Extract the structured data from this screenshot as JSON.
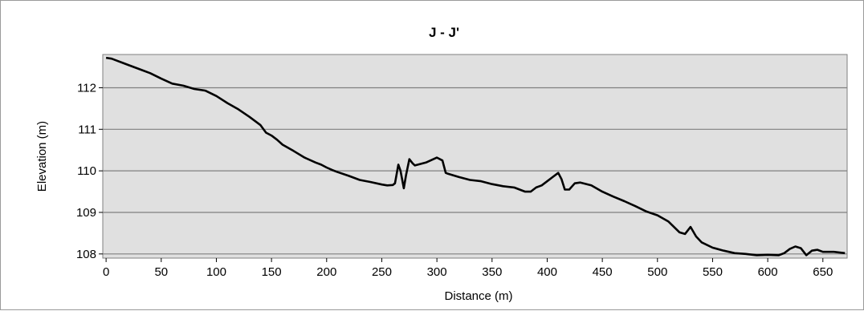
{
  "chart_data": {
    "type": "line",
    "title": "J - J'",
    "xlabel": "Distance (m)",
    "ylabel": "Elevation (m)",
    "xlim": [
      -3,
      672
    ],
    "ylim": [
      107.9,
      112.8
    ],
    "xticks": [
      0,
      50,
      100,
      150,
      200,
      250,
      300,
      350,
      400,
      450,
      500,
      550,
      600,
      650
    ],
    "yticks": [
      108,
      109,
      110,
      111,
      112
    ],
    "grid": "horizontal",
    "plot_background": "#e0e0e0",
    "line_color": "#000000",
    "series": [
      {
        "x": [
          0,
          5,
          10,
          15,
          20,
          30,
          40,
          50,
          60,
          70,
          80,
          90,
          100,
          110,
          120,
          130,
          140,
          145,
          150,
          155,
          160,
          170,
          180,
          190,
          195,
          200,
          205,
          210,
          220,
          230,
          240,
          250,
          255,
          260,
          262,
          265,
          267,
          270,
          272,
          275,
          278,
          280,
          290,
          300,
          305,
          308,
          310,
          320,
          330,
          340,
          350,
          360,
          370,
          380,
          385,
          390,
          395,
          400,
          405,
          410,
          413,
          416,
          420,
          425,
          430,
          440,
          450,
          460,
          470,
          480,
          490,
          500,
          510,
          520,
          525,
          530,
          535,
          540,
          550,
          560,
          570,
          580,
          590,
          600,
          610,
          615,
          620,
          625,
          630,
          635,
          640,
          645,
          650,
          660,
          670
        ],
        "y": [
          112.72,
          112.7,
          112.65,
          112.6,
          112.55,
          112.45,
          112.35,
          112.22,
          112.1,
          112.05,
          111.97,
          111.93,
          111.8,
          111.63,
          111.48,
          111.3,
          111.1,
          110.92,
          110.85,
          110.75,
          110.63,
          110.48,
          110.32,
          110.2,
          110.15,
          110.08,
          110.02,
          109.97,
          109.88,
          109.78,
          109.73,
          109.67,
          109.65,
          109.66,
          109.7,
          110.15,
          110.0,
          109.58,
          109.9,
          110.28,
          110.18,
          110.13,
          110.2,
          110.32,
          110.25,
          109.95,
          109.93,
          109.85,
          109.78,
          109.75,
          109.68,
          109.63,
          109.6,
          109.5,
          109.5,
          109.6,
          109.65,
          109.75,
          109.85,
          109.95,
          109.8,
          109.55,
          109.55,
          109.7,
          109.72,
          109.65,
          109.5,
          109.38,
          109.27,
          109.15,
          109.02,
          108.93,
          108.78,
          108.52,
          108.48,
          108.65,
          108.42,
          108.28,
          108.15,
          108.08,
          108.02,
          108.0,
          107.97,
          107.98,
          107.97,
          108.02,
          108.12,
          108.18,
          108.14,
          107.97,
          108.08,
          108.1,
          108.05,
          108.05,
          108.02
        ]
      }
    ]
  }
}
